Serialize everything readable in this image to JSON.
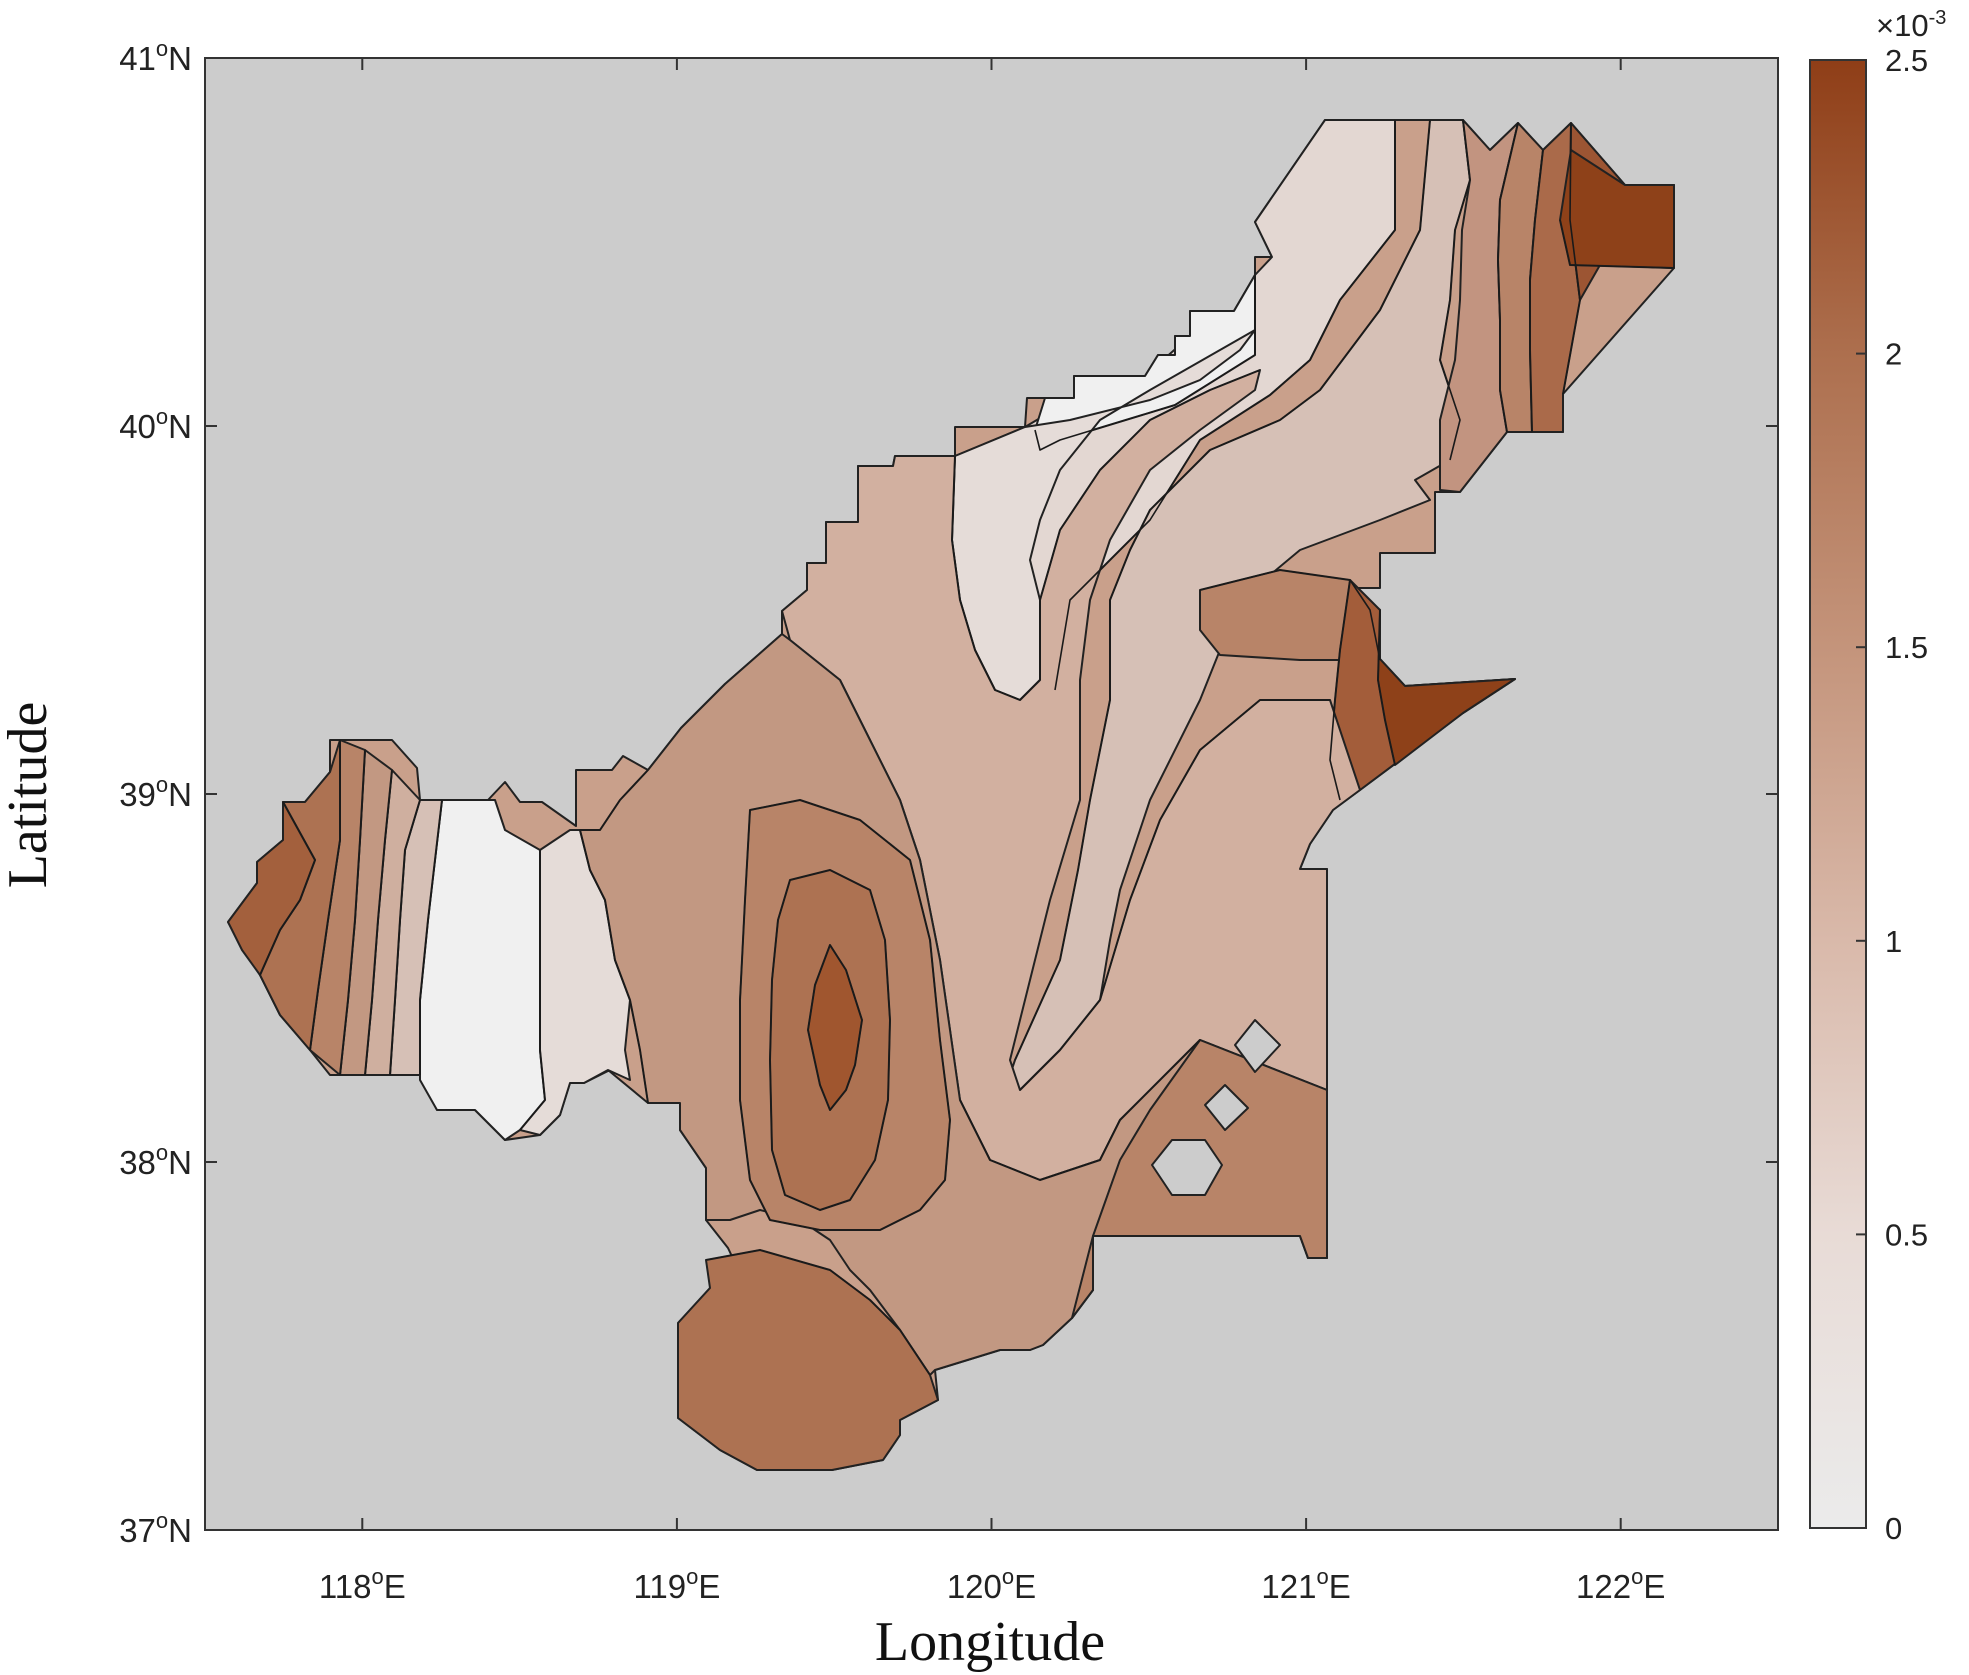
{
  "map": {
    "x_axis": {
      "title": "Longitude",
      "ticks": [
        {
          "value": 118,
          "label": "118",
          "deg": "o",
          "hemi": "E"
        },
        {
          "value": 119,
          "label": "119",
          "deg": "o",
          "hemi": "E"
        },
        {
          "value": 120,
          "label": "120",
          "deg": "o",
          "hemi": "E"
        },
        {
          "value": 121,
          "label": "121",
          "deg": "o",
          "hemi": "E"
        },
        {
          "value": 122,
          "label": "122",
          "deg": "o",
          "hemi": "E"
        }
      ],
      "range": [
        117.5,
        122.5
      ]
    },
    "y_axis": {
      "title": "Latitude",
      "ticks": [
        {
          "value": 37,
          "label": "37",
          "deg": "o",
          "hemi": "N"
        },
        {
          "value": 38,
          "label": "38",
          "deg": "o",
          "hemi": "N"
        },
        {
          "value": 39,
          "label": "39",
          "deg": "o",
          "hemi": "N"
        },
        {
          "value": 40,
          "label": "40",
          "deg": "o",
          "hemi": "N"
        },
        {
          "value": 41,
          "label": "41",
          "deg": "o",
          "hemi": "N"
        }
      ],
      "range": [
        37,
        41
      ]
    },
    "colorbar": {
      "range": [
        0,
        0.0025
      ],
      "exponent_base": "×10",
      "exponent": "-3",
      "ticks": [
        "0",
        "0.5",
        "1",
        "1.5",
        "2",
        "2.5"
      ],
      "colors": [
        "#ebebeb",
        "#e8dbd6",
        "#d9b9aa",
        "#c4947b",
        "#ad6f4e",
        "#8f3e17"
      ]
    },
    "colors": {
      "land_background": "#cccccc",
      "level_1": "#f0f0f0",
      "level_2": "#e5dcd8",
      "level_3": "#d9c3b9",
      "level_4": "#cfae9f",
      "level_5": "#c29882",
      "level_6": "#b8866c",
      "level_7": "#ad7252",
      "level_8": "#a3603d",
      "level_9": "#8f4218"
    }
  }
}
